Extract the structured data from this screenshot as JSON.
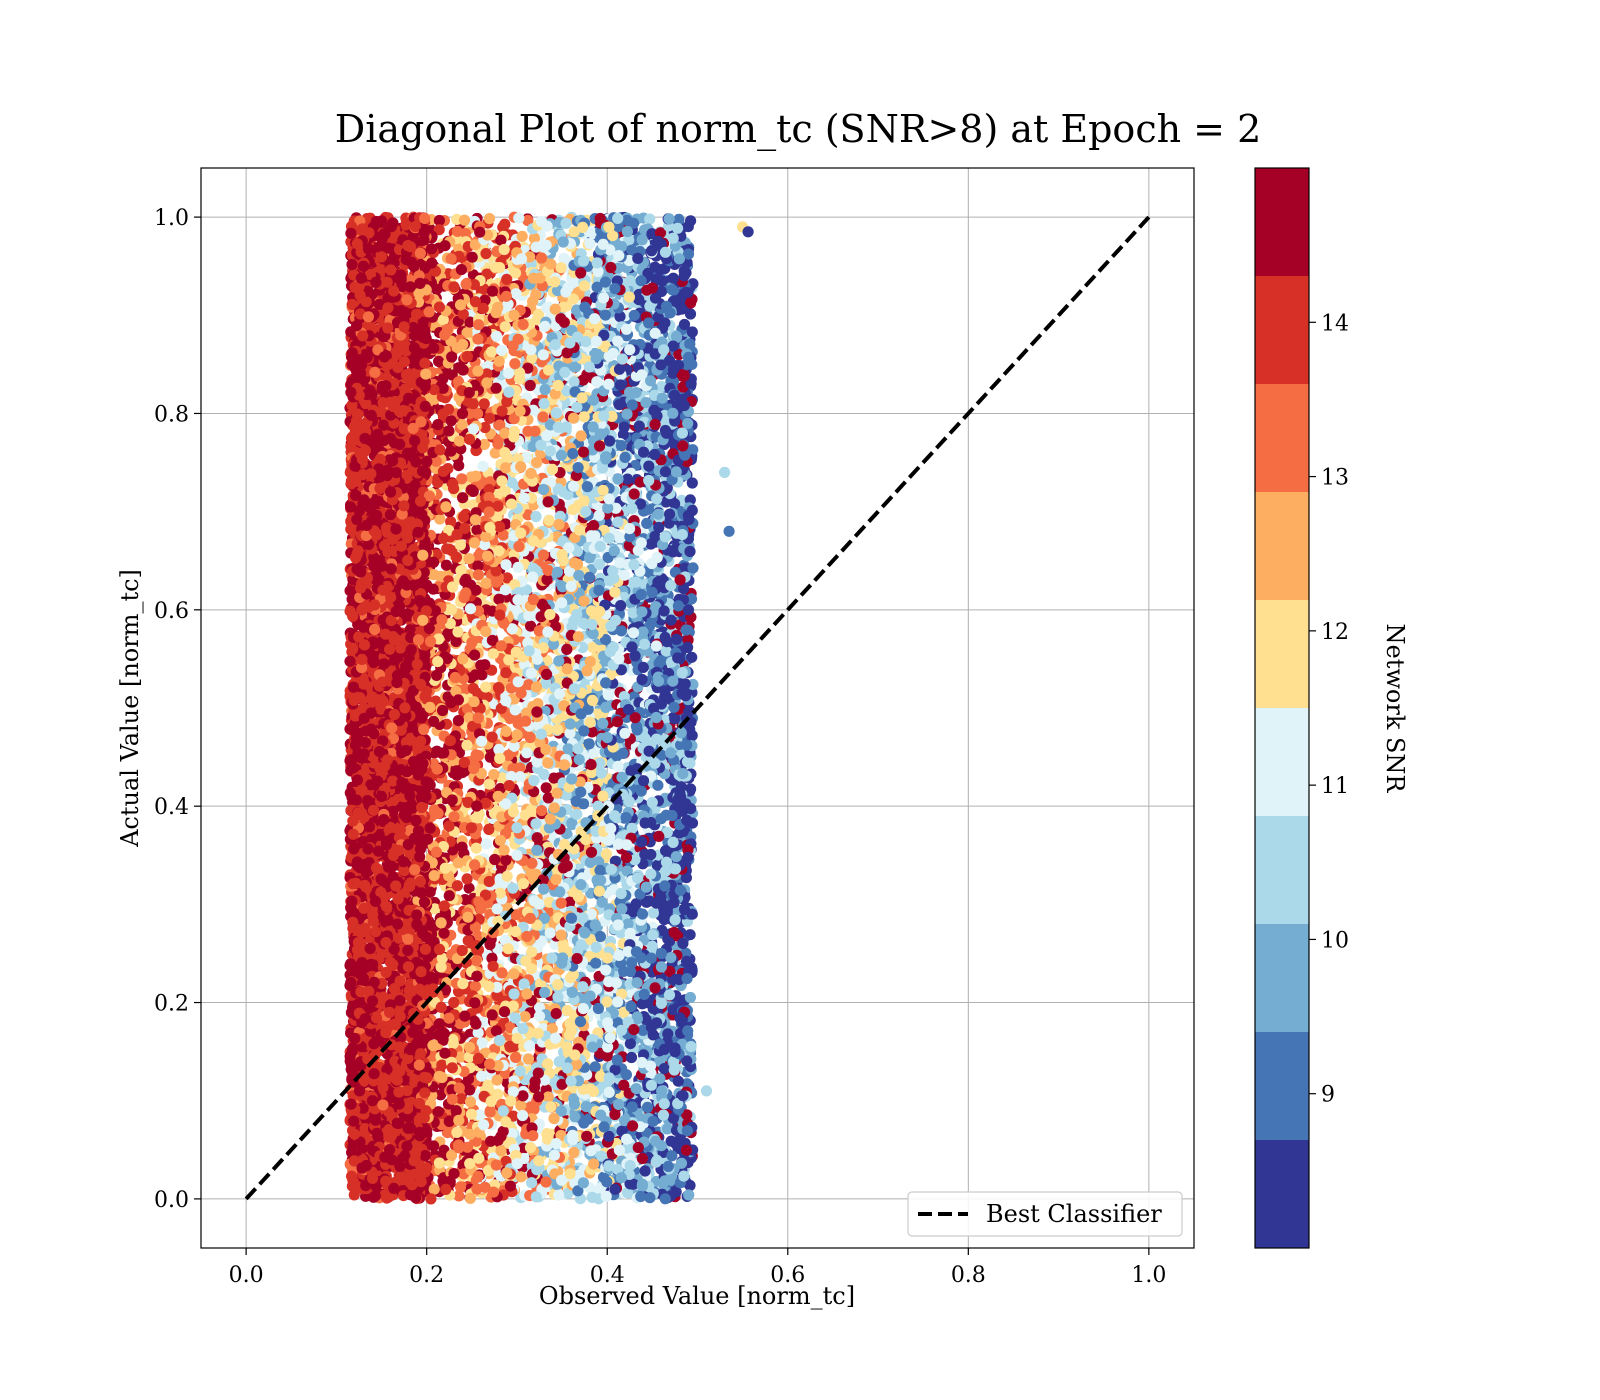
{
  "chart_data": {
    "type": "scatter",
    "title": "Diagonal Plot of norm_tc (SNR>8) at Epoch = 2",
    "xlabel": "Observed Value [norm_tc]",
    "ylabel": "Actual Value [norm_tc]",
    "xlim": [
      -0.05,
      1.05
    ],
    "ylim": [
      -0.05,
      1.05
    ],
    "xticks": [
      "0.0",
      "0.2",
      "0.4",
      "0.6",
      "0.8",
      "1.0"
    ],
    "yticks": [
      "0.0",
      "0.2",
      "0.4",
      "0.6",
      "0.8",
      "1.0"
    ],
    "xtick_values": [
      0.0,
      0.2,
      0.4,
      0.6,
      0.8,
      1.0
    ],
    "ytick_values": [
      0.0,
      0.2,
      0.4,
      0.6,
      0.8,
      1.0
    ],
    "grid": true,
    "reference_line": {
      "label": "Best Classifier",
      "style": "dashed",
      "color": "#000000",
      "x": [
        0.0,
        1.0
      ],
      "y": [
        0.0,
        1.0
      ]
    },
    "legend": {
      "placement": "lower-right",
      "entries": [
        "Best Classifier"
      ]
    },
    "colorbar": {
      "label": "Network SNR",
      "range": [
        8.0,
        15.0
      ],
      "tick_values": [
        9,
        10,
        11,
        12,
        13,
        14
      ],
      "tick_labels": [
        "9",
        "10",
        "11",
        "12",
        "13",
        "14"
      ],
      "levels": [
        {
          "from": 8.0,
          "to": 8.7,
          "color": "#313695"
        },
        {
          "from": 8.7,
          "to": 9.4,
          "color": "#4575b4"
        },
        {
          "from": 9.4,
          "to": 10.1,
          "color": "#74add1"
        },
        {
          "from": 10.1,
          "to": 10.8,
          "color": "#abd9e9"
        },
        {
          "from": 10.8,
          "to": 11.5,
          "color": "#e0f3f8"
        },
        {
          "from": 11.5,
          "to": 12.2,
          "color": "#fee090"
        },
        {
          "from": 12.2,
          "to": 12.9,
          "color": "#fdae61"
        },
        {
          "from": 12.9,
          "to": 13.6,
          "color": "#f46d43"
        },
        {
          "from": 13.6,
          "to": 14.3,
          "color": "#d73027"
        },
        {
          "from": 14.3,
          "to": 15.0,
          "color": "#a50026"
        }
      ]
    },
    "series": [
      {
        "observed_range": [
          0.1,
          0.56
        ],
        "actual_range": [
          0.0,
          1.0
        ],
        "snr_trend": "high SNR near observed 0.12-0.19, decreasing SNR as observed increases to ~0.5",
        "points": [
          {
            "x": 0.13,
            "y": 0.95,
            "snr": 14.8
          },
          {
            "x": 0.16,
            "y": 0.72,
            "snr": 14.9
          },
          {
            "x": 0.15,
            "y": 0.41,
            "snr": 14.7
          },
          {
            "x": 0.14,
            "y": 0.1,
            "snr": 14.9
          },
          {
            "x": 0.22,
            "y": 0.88,
            "snr": 13.4
          },
          {
            "x": 0.24,
            "y": 0.55,
            "snr": 12.6
          },
          {
            "x": 0.23,
            "y": 0.2,
            "snr": 13.9
          },
          {
            "x": 0.28,
            "y": 0.66,
            "snr": 12.1
          },
          {
            "x": 0.3,
            "y": 0.35,
            "snr": 11.2
          },
          {
            "x": 0.33,
            "y": 0.81,
            "snr": 10.6
          },
          {
            "x": 0.36,
            "y": 0.12,
            "snr": 10.2
          },
          {
            "x": 0.4,
            "y": 0.47,
            "snr": 9.8
          },
          {
            "x": 0.43,
            "y": 0.9,
            "snr": 9.3
          },
          {
            "x": 0.46,
            "y": 0.25,
            "snr": 8.7
          },
          {
            "x": 0.49,
            "y": 0.6,
            "snr": 8.3
          },
          {
            "x": 0.51,
            "y": 0.11,
            "snr": 10.4
          },
          {
            "x": 0.53,
            "y": 0.74,
            "snr": 10.6
          },
          {
            "x": 0.55,
            "y": 0.99,
            "snr": 11.9
          },
          {
            "x": 0.556,
            "y": 0.985,
            "snr": 8.1
          },
          {
            "x": 0.535,
            "y": 0.68,
            "snr": 9.2
          }
        ]
      }
    ]
  }
}
